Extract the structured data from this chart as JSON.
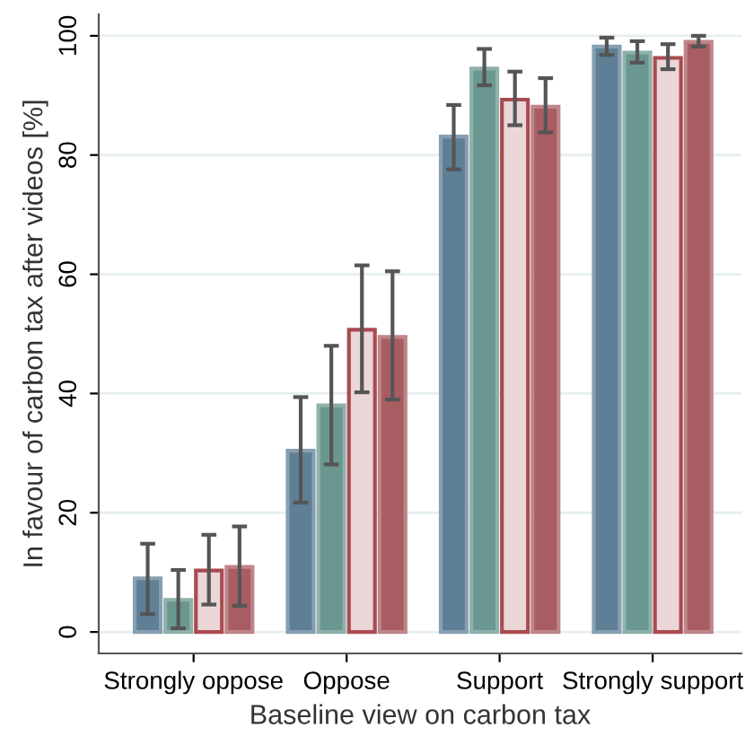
{
  "chart_data": {
    "type": "bar",
    "xlabel": "Baseline view on carbon tax",
    "ylabel": "In favour of carbon tax after videos [%]",
    "categories": [
      "Strongly oppose",
      "Oppose",
      "Support",
      "Strongly support"
    ],
    "series": [
      {
        "color": "#5f7f96",
        "values": [
          9.0,
          30.4,
          83.1,
          98.2
        ],
        "errors": [
          [
            3.0,
            14.8
          ],
          [
            21.7,
            39.4
          ],
          [
            77.6,
            88.4
          ],
          [
            96.8,
            99.7
          ]
        ]
      },
      {
        "color": "#6a978f",
        "values": [
          5.4,
          38.0,
          94.5,
          97.2
        ],
        "errors": [
          [
            0.6,
            10.4
          ],
          [
            28.1,
            48.0
          ],
          [
            91.7,
            97.8
          ],
          [
            95.5,
            99.1
          ]
        ]
      },
      {
        "color": "#ebd6d8",
        "values": [
          10.3,
          50.7,
          89.3,
          96.3
        ],
        "errors": [
          [
            4.6,
            16.3
          ],
          [
            40.2,
            61.5
          ],
          [
            85.0,
            94.0
          ],
          [
            94.4,
            98.6
          ]
        ]
      },
      {
        "color": "#a85d63",
        "values": [
          10.9,
          49.5,
          88.1,
          99.0
        ],
        "errors": [
          [
            4.4,
            17.7
          ],
          [
            39.0,
            60.5
          ],
          [
            83.8,
            92.9
          ],
          [
            98.2,
            100.0
          ]
        ]
      }
    ],
    "ylim": [
      -3.6,
      103.6
    ],
    "yticks": [
      0,
      20,
      40,
      60,
      80,
      100
    ],
    "grid": "y"
  }
}
